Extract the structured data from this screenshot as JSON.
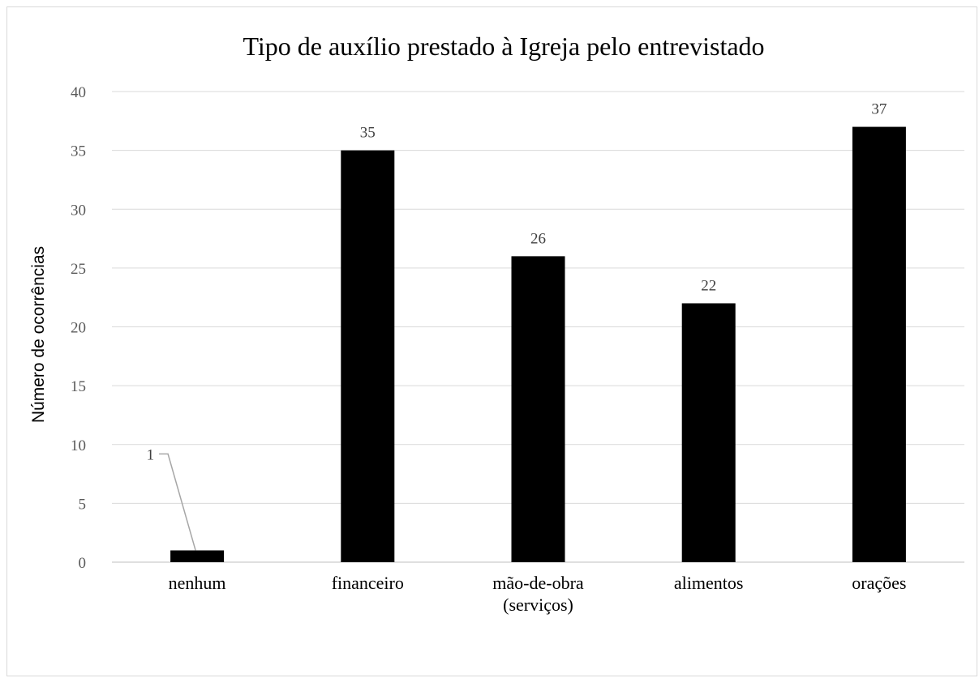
{
  "chart_data": {
    "type": "bar",
    "title": "Tipo de auxílio prestado à Igreja pelo entrevistado",
    "ylabel": "Número de ocorrências",
    "xlabel": "",
    "categories": [
      [
        "nenhum"
      ],
      [
        "financeiro"
      ],
      [
        "mão-de-obra",
        "(serviços)"
      ],
      [
        "alimentos"
      ],
      [
        "orações"
      ]
    ],
    "values": [
      1,
      35,
      26,
      22,
      37
    ],
    "ylim": [
      0,
      40
    ],
    "yticks": [
      0,
      5,
      10,
      15,
      20,
      25,
      30,
      35,
      40
    ],
    "bar_color": "#000000",
    "grid": true,
    "legend": "none"
  }
}
